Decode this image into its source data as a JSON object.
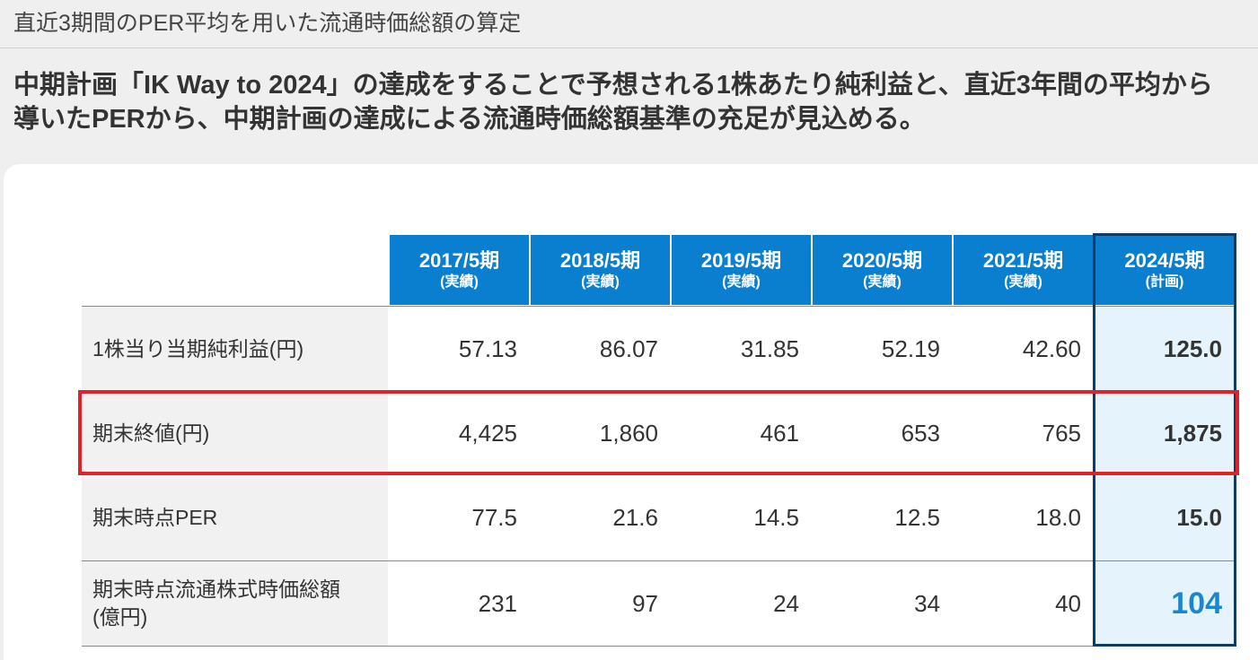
{
  "slide_title": "直近3期間のPER平均を用いた流通時価総額の算定",
  "lead": {
    "line1": "中期計画「IK Way to 2024」の達成をすることで予想される1株あたり純利益と、直近3年間の平均から",
    "line2": "導いたPERから、中期計画の達成による流通時価総額基準の充足が見込める。"
  },
  "table": {
    "columns": [
      {
        "year": "2017/5期",
        "type": "(実績)"
      },
      {
        "year": "2018/5期",
        "type": "(実績)"
      },
      {
        "year": "2019/5期",
        "type": "(実績)"
      },
      {
        "year": "2020/5期",
        "type": "(実績)"
      },
      {
        "year": "2021/5期",
        "type": "(実績)"
      },
      {
        "year": "2024/5期",
        "type": "(計画)"
      }
    ],
    "rows": [
      {
        "label_line1": "1株当り当期純利益(円)",
        "label_line2": "",
        "values": [
          "57.13",
          "86.07",
          "31.85",
          "52.19",
          "42.60",
          "125.0"
        ]
      },
      {
        "label_line1": "期末終値(円)",
        "label_line2": "",
        "values": [
          "4,425",
          "1,860",
          "461",
          "653",
          "765",
          "1,875"
        ]
      },
      {
        "label_line1": "期末時点PER",
        "label_line2": "",
        "values": [
          "77.5",
          "21.6",
          "14.5",
          "12.5",
          "18.0",
          "15.0"
        ]
      },
      {
        "label_line1": "期末時点流通株式時価総額",
        "label_line2": "(億円)",
        "values": [
          "231",
          "97",
          "24",
          "34",
          "40",
          "104"
        ]
      }
    ]
  },
  "colors": {
    "header_blue": "#0a7fd0",
    "plan_border": "#0d3d66",
    "plan_fill": "#e4f3fc",
    "highlight_red": "#e0222a",
    "emphasis_blue": "#1a86cf"
  }
}
